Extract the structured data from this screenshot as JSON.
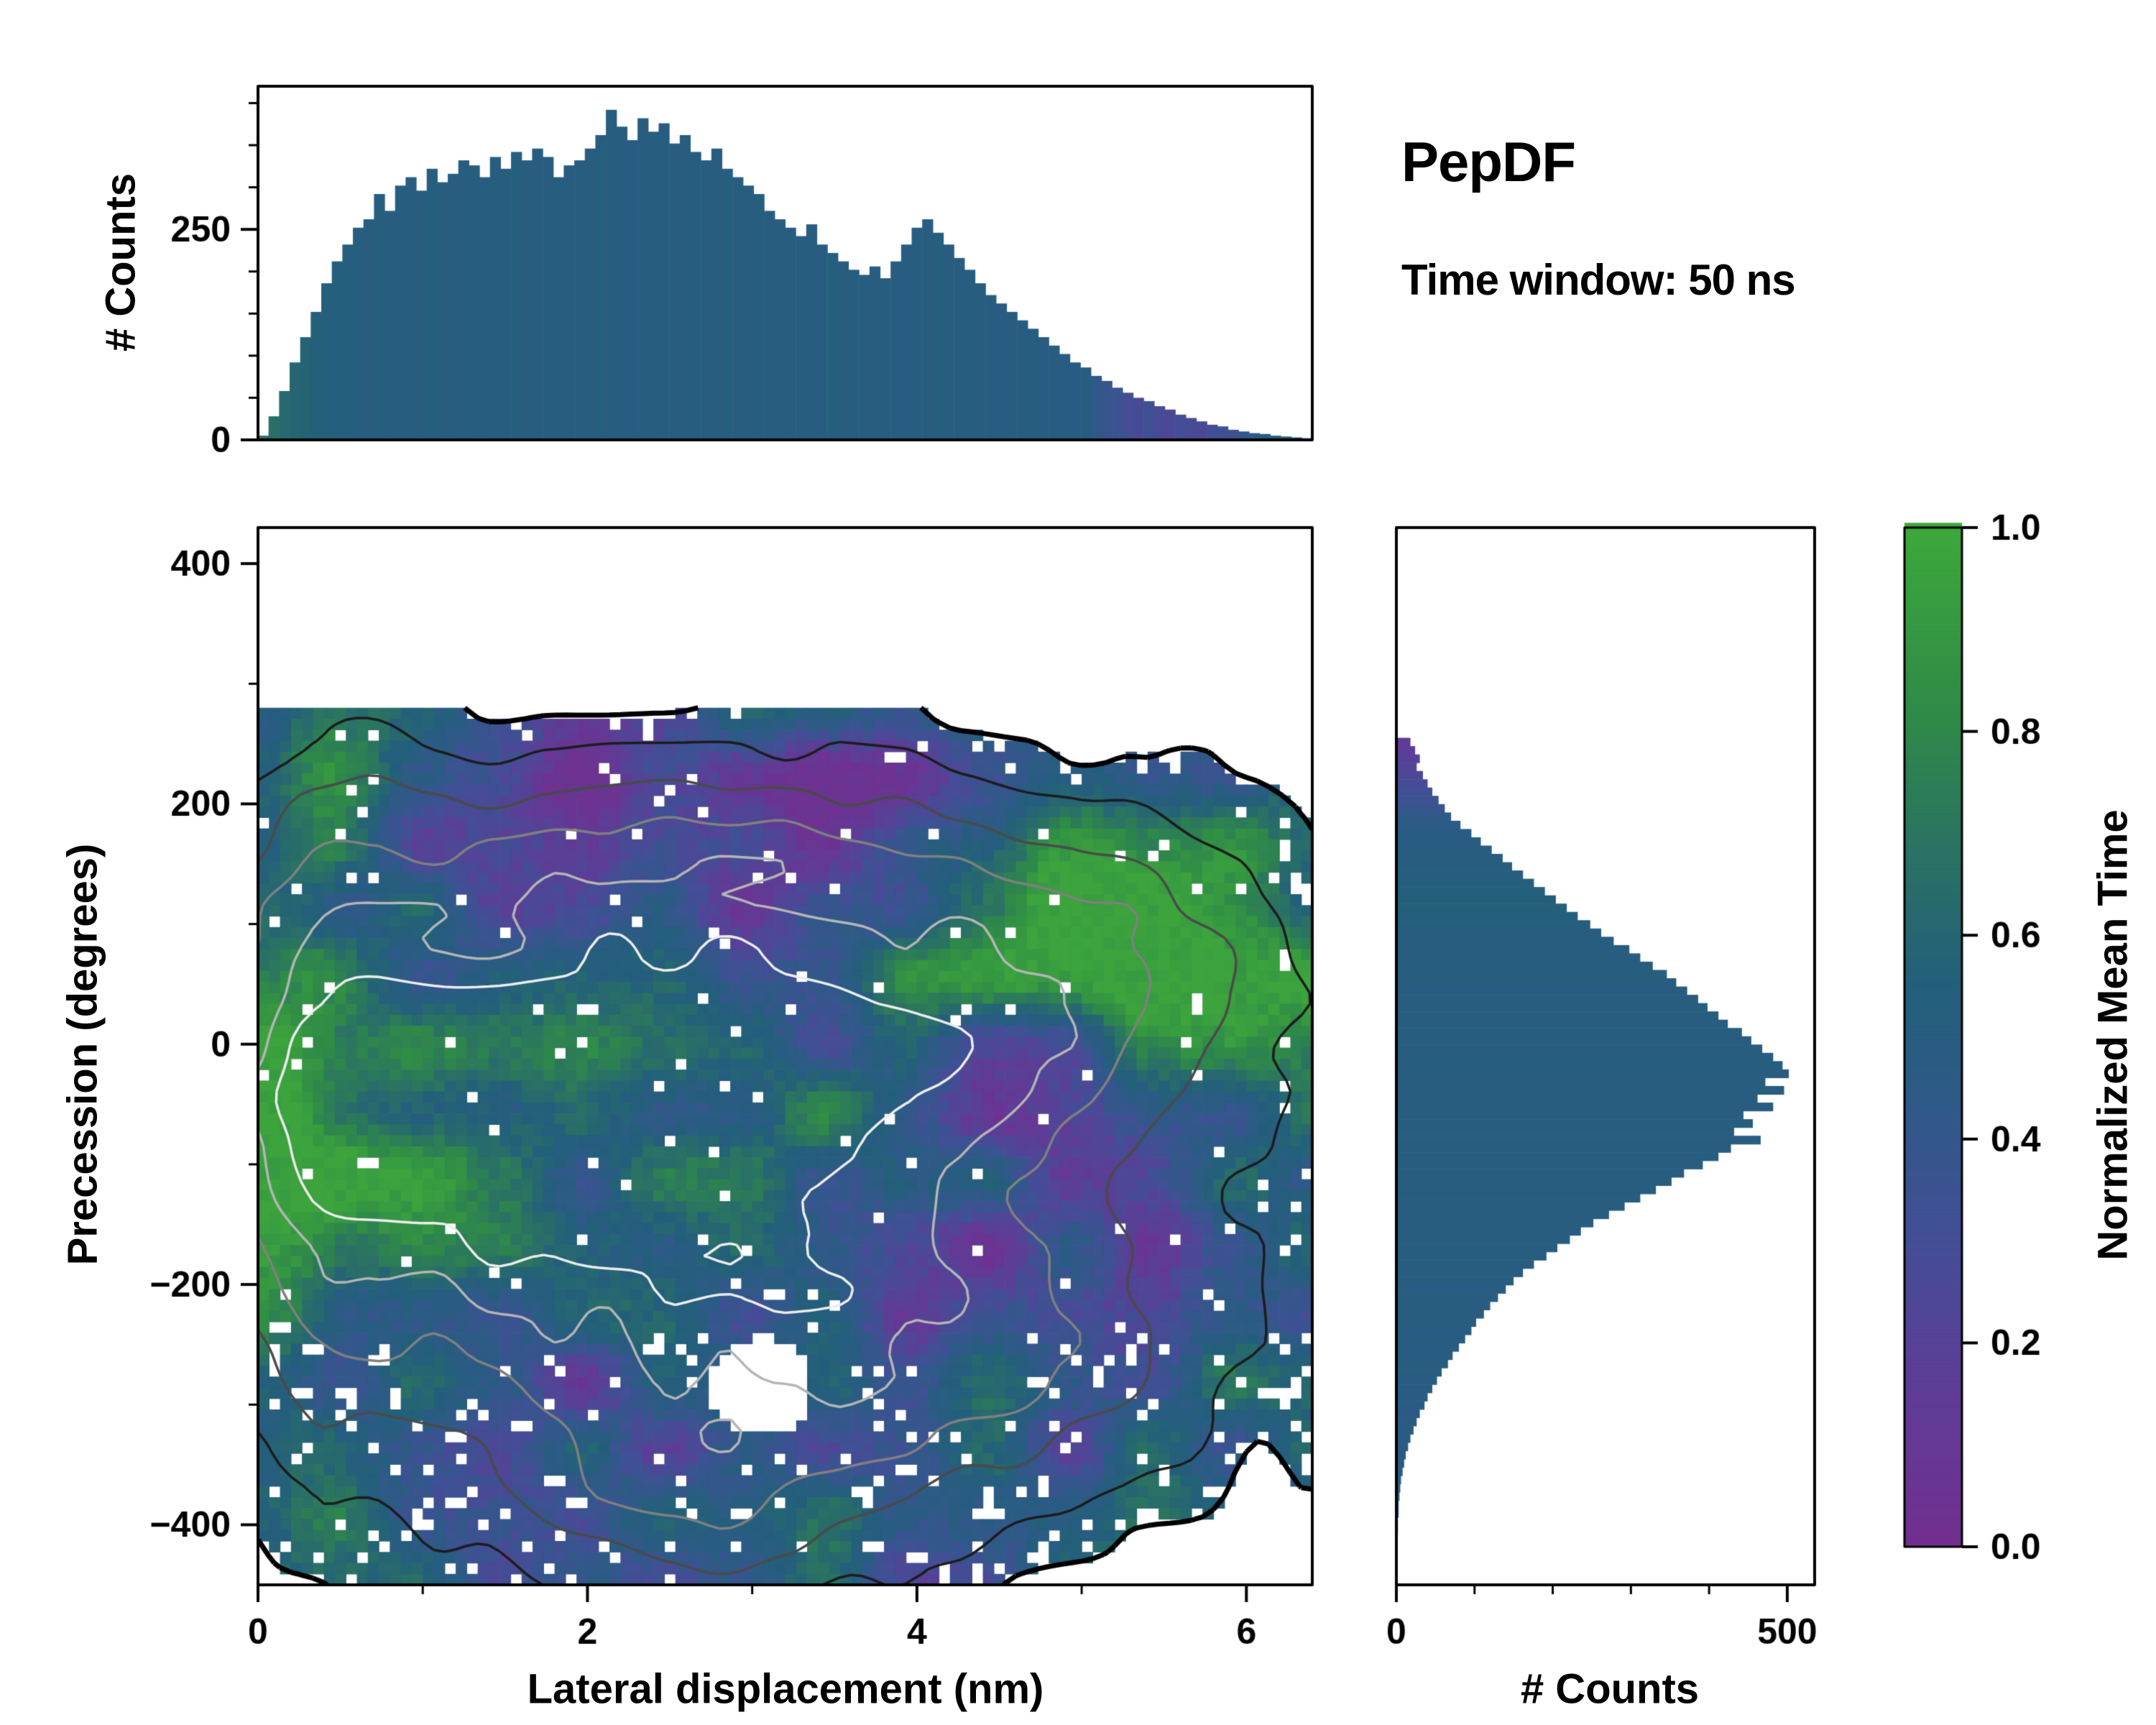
{
  "title": "PepDF",
  "subtitle": "Time window: 50 ns",
  "colors": {
    "background": "#ffffff",
    "axis": "#000000",
    "colormap": [
      [
        0,
        "#722f8f"
      ],
      [
        0.18,
        "#5a3f97"
      ],
      [
        0.32,
        "#3f5094"
      ],
      [
        0.45,
        "#2c5b85"
      ],
      [
        0.55,
        "#235f7b"
      ],
      [
        0.68,
        "#2a7263"
      ],
      [
        0.82,
        "#2f8b47"
      ],
      [
        1,
        "#3ea83b"
      ]
    ]
  },
  "chart_data": [
    {
      "id": "top_histogram",
      "type": "bar",
      "orientation": "vertical",
      "ylabel": "# Counts",
      "xlim": [
        0,
        6.4
      ],
      "ylim": [
        0,
        420
      ],
      "ytick_values": [
        0,
        250
      ],
      "ytick_labels": [
        "0",
        "250"
      ],
      "minor_yticks": [
        50,
        100,
        150,
        200,
        300,
        350,
        400
      ],
      "bin_start": 0,
      "bin_width": 0.064,
      "values": [
        5,
        28,
        58,
        92,
        122,
        152,
        186,
        212,
        232,
        252,
        262,
        292,
        272,
        302,
        312,
        296,
        322,
        306,
        316,
        332,
        326,
        312,
        336,
        322,
        342,
        332,
        346,
        336,
        312,
        326,
        332,
        346,
        362,
        392,
        372,
        356,
        382,
        366,
        376,
        352,
        362,
        342,
        332,
        346,
        322,
        312,
        302,
        292,
        272,
        262,
        252,
        242,
        256,
        232,
        222,
        212,
        202,
        196,
        206,
        192,
        212,
        232,
        252,
        262,
        246,
        232,
        216,
        202,
        186,
        172,
        162,
        152,
        142,
        132,
        122,
        112,
        102,
        92,
        86,
        76,
        70,
        62,
        56,
        50,
        46,
        40,
        36,
        30,
        26,
        22,
        18,
        16,
        12,
        10,
        8,
        7,
        5,
        4,
        3,
        2
      ],
      "color_values": [
        0.68,
        0.66,
        0.62,
        0.6,
        0.58,
        0.56,
        0.54,
        0.52,
        0.52,
        0.51,
        0.5,
        0.52,
        0.5,
        0.51,
        0.49,
        0.5,
        0.52,
        0.5,
        0.49,
        0.51,
        0.5,
        0.49,
        0.51,
        0.5,
        0.52,
        0.5,
        0.49,
        0.5,
        0.51,
        0.5,
        0.49,
        0.5,
        0.52,
        0.51,
        0.5,
        0.49,
        0.5,
        0.51,
        0.5,
        0.49,
        0.5,
        0.51,
        0.49,
        0.5,
        0.52,
        0.5,
        0.49,
        0.51,
        0.5,
        0.49,
        0.5,
        0.51,
        0.5,
        0.49,
        0.52,
        0.5,
        0.51,
        0.49,
        0.5,
        0.51,
        0.5,
        0.49,
        0.51,
        0.5,
        0.52,
        0.5,
        0.49,
        0.51,
        0.5,
        0.49,
        0.48,
        0.5,
        0.49,
        0.51,
        0.48,
        0.5,
        0.49,
        0.48,
        0.5,
        0.42,
        0.38,
        0.35,
        0.3,
        0.28,
        0.32,
        0.27,
        0.25,
        0.3,
        0.28,
        0.26,
        0.3,
        0.32,
        0.35,
        0.4,
        0.45,
        0.48,
        0.5,
        0.48,
        0.5,
        0.49
      ]
    },
    {
      "id": "joint_heatmap",
      "type": "heatmap",
      "xlabel": "Lateral displacement (nm)",
      "ylabel": "Precession (degrees)",
      "colorbar_label": "Normalized Mean Time",
      "xlim": [
        0,
        6.4
      ],
      "ylim": [
        -450,
        430
      ],
      "xtick_values": [
        0,
        2,
        4,
        6
      ],
      "xtick_labels": [
        "0",
        "2",
        "4",
        "6"
      ],
      "minor_xticks": [
        1,
        3,
        5
      ],
      "ytick_values": [
        -400,
        -200,
        0,
        200,
        400
      ],
      "ytick_labels": [
        "−400",
        "−200",
        "0",
        "200",
        "400"
      ],
      "minor_yticks": [
        -300,
        -100,
        100,
        300
      ],
      "grid": {
        "nx": 96,
        "ny": 80,
        "xmin": 0,
        "xmax": 6.4,
        "ymin": -450,
        "ymax": 280
      },
      "seed": 42,
      "mask_threshold": 0.26,
      "blobs": [
        {
          "cx": 2.2,
          "cy": 20,
          "sx": 1.9,
          "sy": 145,
          "w": 1.0
        },
        {
          "cx": 3.6,
          "cy": -40,
          "sx": 1.6,
          "sy": 150,
          "w": 0.9
        },
        {
          "cx": 1.0,
          "cy": -100,
          "sx": 1.4,
          "sy": 140,
          "w": 0.8
        },
        {
          "cx": 2.8,
          "cy": -280,
          "sx": 1.6,
          "sy": 120,
          "w": 0.85
        },
        {
          "cx": 5.2,
          "cy": 60,
          "sx": 0.9,
          "sy": 80,
          "w": 0.7
        },
        {
          "cx": 2.6,
          "cy": -390,
          "sx": 1.0,
          "sy": 60,
          "w": 0.6
        },
        {
          "cx": 4.8,
          "cy": -260,
          "sx": 1.1,
          "sy": 80,
          "w": 0.6
        },
        {
          "cx": 2.6,
          "cy": 160,
          "sx": 1.5,
          "sy": 55,
          "w": 0.45
        },
        {
          "cx": 0.4,
          "cy": 0,
          "sx": 0.5,
          "sy": 230,
          "w": 0.6
        }
      ],
      "holes": [
        {
          "cx": 3.05,
          "cy": -285,
          "sx": 0.28,
          "sy": 38
        }
      ],
      "value_patches": [
        {
          "cx": 2.5,
          "cy": 190,
          "sx": 1.3,
          "sy": 70,
          "dv": -0.34
        },
        {
          "cx": 4.9,
          "cy": -70,
          "sx": 0.9,
          "sy": 90,
          "dv": -0.3
        },
        {
          "cx": 5.6,
          "cy": 60,
          "sx": 0.9,
          "sy": 75,
          "dv": 0.5
        },
        {
          "cx": 0.12,
          "cy": -30,
          "sx": 0.4,
          "sy": 280,
          "dv": 0.4
        },
        {
          "cx": 1.2,
          "cy": -100,
          "sx": 0.6,
          "sy": 70,
          "dv": 0.22
        },
        {
          "cx": 3.3,
          "cy": -60,
          "sx": 0.7,
          "sy": 60,
          "dv": 0.16
        },
        {
          "cx": 4.3,
          "cy": 130,
          "sx": 0.6,
          "sy": 55,
          "dv": 0.3
        },
        {
          "cx": 2.0,
          "cy": -330,
          "sx": 1.5,
          "sy": 90,
          "dv": -0.12
        },
        {
          "cx": 3.6,
          "cy": 160,
          "sx": 0.8,
          "sy": 60,
          "dv": -0.18
        },
        {
          "cx": 2.4,
          "cy": -180,
          "sx": 1.8,
          "sy": 120,
          "dv": -0.06
        }
      ],
      "contour_levels": [
        {
          "v": 0.26,
          "c": "#000000",
          "w": 7
        },
        {
          "v": 0.55,
          "c": "#1c1c1c",
          "w": 3.5
        },
        {
          "v": 0.9,
          "c": "#4a4a4a",
          "w": 3.5
        },
        {
          "v": 1.25,
          "c": "#808080",
          "w": 3.5
        },
        {
          "v": 1.55,
          "c": "#b5b5b5",
          "w": 3.5
        },
        {
          "v": 1.8,
          "c": "#ededed",
          "w": 3.5
        }
      ]
    },
    {
      "id": "right_histogram",
      "type": "bar",
      "orientation": "horizontal",
      "xlabel": "# Counts",
      "xlim": [
        0,
        535
      ],
      "xtick_values": [
        0,
        500
      ],
      "xtick_labels": [
        "0",
        "500"
      ],
      "minor_xticks": [
        100,
        200,
        300,
        400
      ],
      "bin_start": 255,
      "bin_step": 6.9,
      "values": [
        18,
        24,
        30,
        26,
        34,
        40,
        46,
        54,
        62,
        70,
        82,
        96,
        108,
        122,
        136,
        148,
        162,
        176,
        190,
        204,
        218,
        232,
        248,
        262,
        278,
        298,
        312,
        328,
        346,
        358,
        372,
        386,
        398,
        412,
        424,
        442,
        454,
        468,
        482,
        494,
        502,
        472,
        496,
        462,
        482,
        444,
        456,
        432,
        466,
        428,
        412,
        392,
        368,
        352,
        332,
        312,
        292,
        272,
        252,
        236,
        222,
        206,
        192,
        176,
        162,
        150,
        140,
        130,
        120,
        112,
        102,
        96,
        88,
        80,
        72,
        66,
        58,
        52,
        46,
        40,
        36,
        30,
        26,
        22,
        18,
        15,
        12,
        10,
        8,
        6,
        5,
        4,
        3,
        3,
        2,
        2,
        1,
        1,
        1,
        1
      ],
      "color_values": [
        0.15,
        0.17,
        0.2,
        0.22,
        0.25,
        0.28,
        0.31,
        0.34,
        0.38,
        0.42,
        0.45,
        0.47,
        0.48,
        0.5,
        0.49,
        0.51,
        0.5,
        0.52,
        0.54,
        0.55,
        0.56,
        0.54,
        0.52,
        0.5,
        0.51,
        0.49,
        0.5,
        0.51,
        0.52,
        0.5,
        0.49,
        0.5,
        0.51,
        0.5,
        0.49,
        0.51,
        0.5,
        0.49,
        0.5,
        0.51,
        0.5,
        0.49,
        0.51,
        0.5,
        0.49,
        0.5,
        0.51,
        0.5,
        0.49,
        0.5,
        0.51,
        0.5,
        0.49,
        0.5,
        0.51,
        0.49,
        0.5,
        0.51,
        0.5,
        0.49,
        0.5,
        0.49,
        0.51,
        0.5,
        0.49,
        0.5,
        0.48,
        0.5,
        0.49,
        0.5,
        0.49,
        0.48,
        0.5,
        0.49,
        0.48,
        0.49,
        0.5,
        0.48,
        0.47,
        0.48,
        0.47,
        0.46,
        0.48,
        0.47,
        0.46,
        0.47,
        0.46,
        0.45,
        0.46,
        0.45,
        0.45,
        0.44,
        0.45,
        0.44,
        0.45,
        0.44,
        0.45,
        0.44,
        0.45,
        0.44
      ]
    },
    {
      "id": "colorbar",
      "type": "colorbar",
      "label": "Normalized Mean Time",
      "range": [
        0,
        1
      ],
      "tick_values": [
        0,
        0.2,
        0.4,
        0.6,
        0.8,
        1
      ],
      "tick_labels": [
        "0.0",
        "0.2",
        "0.4",
        "0.6",
        "0.8",
        "1.0"
      ]
    }
  ]
}
